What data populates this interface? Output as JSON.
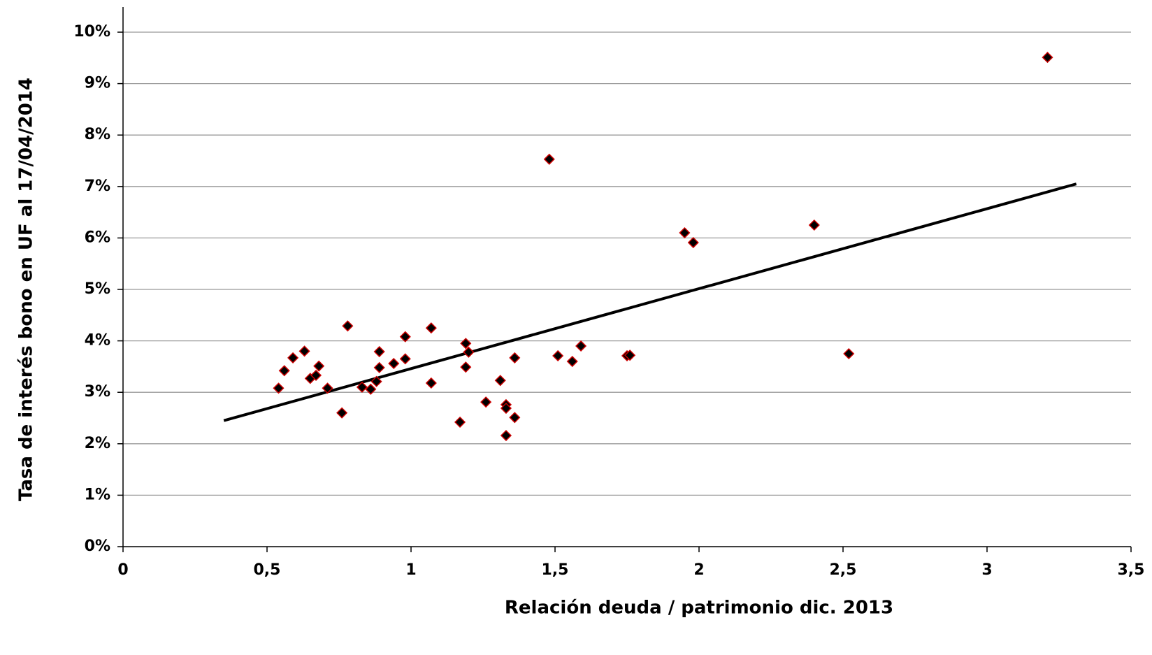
{
  "chart_data": {
    "type": "scatter",
    "xlabel": "Relación deuda / patrimonio dic. 2013",
    "ylabel": "Tasa de interés bono en UF al 17/04/2014",
    "x": [
      0.54,
      0.56,
      0.59,
      0.63,
      0.65,
      0.67,
      0.68,
      0.71,
      0.76,
      0.78,
      0.83,
      0.86,
      0.88,
      0.89,
      0.89,
      0.94,
      0.98,
      0.98,
      1.07,
      1.07,
      1.17,
      1.19,
      1.2,
      1.19,
      1.26,
      1.31,
      1.33,
      1.33,
      1.33,
      1.36,
      1.36,
      1.48,
      1.51,
      1.56,
      1.59,
      1.75,
      1.76,
      1.95,
      1.98,
      2.4,
      2.52,
      3.21
    ],
    "y": [
      3.08,
      3.42,
      3.67,
      3.8,
      3.27,
      3.33,
      3.51,
      3.08,
      2.6,
      4.29,
      3.1,
      3.06,
      3.21,
      3.79,
      3.48,
      3.56,
      4.08,
      3.65,
      4.25,
      3.18,
      2.42,
      3.95,
      3.78,
      3.49,
      2.81,
      3.23,
      2.76,
      2.69,
      2.16,
      3.67,
      2.51,
      7.53,
      3.71,
      3.6,
      3.9,
      3.71,
      3.72,
      6.1,
      5.91,
      6.25,
      3.75,
      9.51
    ],
    "marker_color": "#000000",
    "marker_edge_color": "#cc0000",
    "trendline": {
      "x": [
        0.35,
        3.31
      ],
      "y": [
        2.45,
        7.05
      ],
      "color": "#000000"
    },
    "xlim": [
      0,
      3.5
    ],
    "xticks": [
      0,
      {
        "value": 0.5,
        "label": "0,5"
      },
      1,
      {
        "value": 1.5,
        "label": "1,5"
      },
      2,
      {
        "value": 2.5,
        "label": "2,5"
      },
      3,
      {
        "value": 3.5,
        "label": "3,5"
      }
    ],
    "ylim": [
      0,
      10
    ],
    "yticks": [
      {
        "value": 0,
        "label": "0%"
      },
      {
        "value": 1,
        "label": "1%"
      },
      {
        "value": 2,
        "label": "2%"
      },
      {
        "value": 3,
        "label": "3%"
      },
      {
        "value": 4,
        "label": "4%"
      },
      {
        "value": 5,
        "label": "5%"
      },
      {
        "value": 6,
        "label": "6%"
      },
      {
        "value": 7,
        "label": "7%"
      },
      {
        "value": 8,
        "label": "8%"
      },
      {
        "value": 9,
        "label": "9%"
      },
      {
        "value": 10,
        "label": "10%"
      }
    ],
    "grid": true
  }
}
